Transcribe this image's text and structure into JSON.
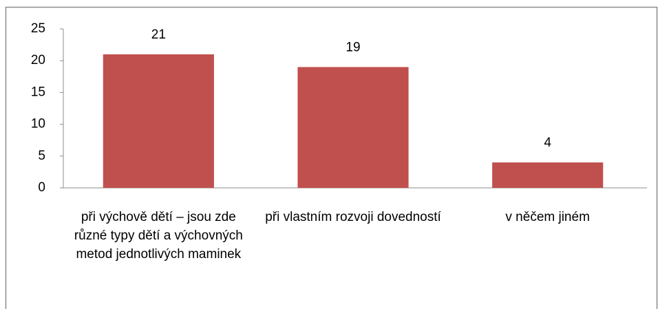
{
  "chart_data": {
    "type": "bar",
    "categories": [
      "při výchově dětí – jsou zde různé typy dětí a výchovných metod jednotlivých maminek",
      "při vlastním rozvoji dovedností",
      "v něčem jiném"
    ],
    "values": [
      21,
      19,
      4
    ],
    "color": "#c0504d",
    "ylim": [
      0,
      25
    ],
    "yticks": [
      0,
      5,
      10,
      15,
      20,
      25
    ],
    "grid": false
  }
}
